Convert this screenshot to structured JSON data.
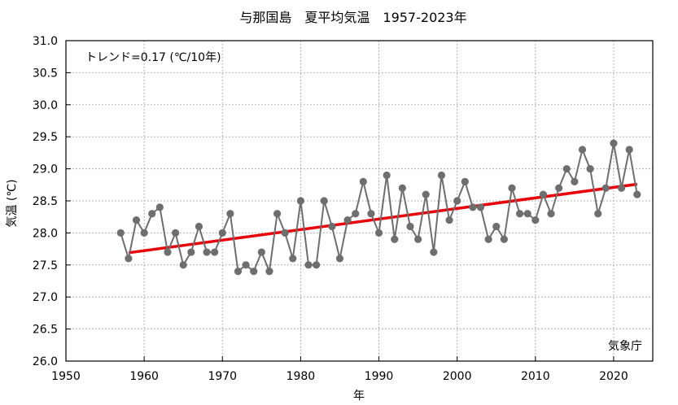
{
  "chart_data": {
    "type": "line",
    "title": "与那国島　夏平均気温　1957-2023年",
    "xlabel": "年",
    "ylabel": "気温 (℃)",
    "xlim": [
      1950,
      2025
    ],
    "ylim": [
      26.0,
      31.0
    ],
    "xticks": [
      1950,
      1960,
      1970,
      1980,
      1990,
      2000,
      2010,
      2020
    ],
    "yticks": [
      "26.0",
      "26.5",
      "27.0",
      "27.5",
      "28.0",
      "28.5",
      "29.0",
      "29.5",
      "30.0",
      "30.5",
      "31.0"
    ],
    "grid": true,
    "trend_label": "トレンド=0.17 (℃/10年)",
    "source_label": "気象庁",
    "colors": {
      "series": "#6e6e6e",
      "trend": "#e8000a"
    },
    "series": [
      {
        "x": [
          1957,
          1958,
          1959,
          1960,
          1961,
          1962,
          1963,
          1964,
          1965,
          1966,
          1967,
          1968,
          1969,
          1970,
          1971,
          1972,
          1973,
          1974,
          1975,
          1976,
          1977,
          1978,
          1979,
          1980,
          1981,
          1982,
          1983,
          1984,
          1985,
          1986,
          1987,
          1988,
          1989,
          1990,
          1991,
          1992,
          1993,
          1994,
          1995,
          1996,
          1997,
          1998,
          1999,
          2000,
          2001,
          2002,
          2003,
          2004,
          2005,
          2006,
          2007,
          2008,
          2009,
          2010,
          2011,
          2012,
          2013,
          2014,
          2015,
          2016,
          2017,
          2018,
          2019,
          2020,
          2021,
          2022,
          2023
        ],
        "values": [
          28.0,
          27.6,
          28.2,
          28.0,
          28.3,
          28.4,
          27.7,
          28.0,
          27.5,
          27.7,
          28.1,
          27.7,
          27.7,
          28.0,
          28.3,
          27.4,
          27.5,
          27.4,
          27.7,
          27.4,
          28.3,
          28.0,
          27.6,
          28.5,
          27.5,
          27.5,
          28.5,
          28.1,
          27.6,
          28.2,
          28.3,
          28.8,
          28.3,
          28.0,
          28.9,
          27.9,
          28.7,
          28.1,
          27.9,
          28.6,
          27.7,
          28.9,
          28.2,
          28.5,
          28.8,
          28.4,
          28.4,
          27.9,
          28.1,
          27.9,
          28.7,
          28.3,
          28.3,
          28.2,
          28.6,
          28.3,
          28.7,
          29.0,
          28.8,
          29.3,
          29.0,
          28.3,
          28.7,
          29.4,
          28.7,
          29.3,
          28.6
        ]
      }
    ],
    "trend": {
      "x": [
        1958,
        2023
      ],
      "y": [
        27.69,
        28.76
      ]
    }
  }
}
